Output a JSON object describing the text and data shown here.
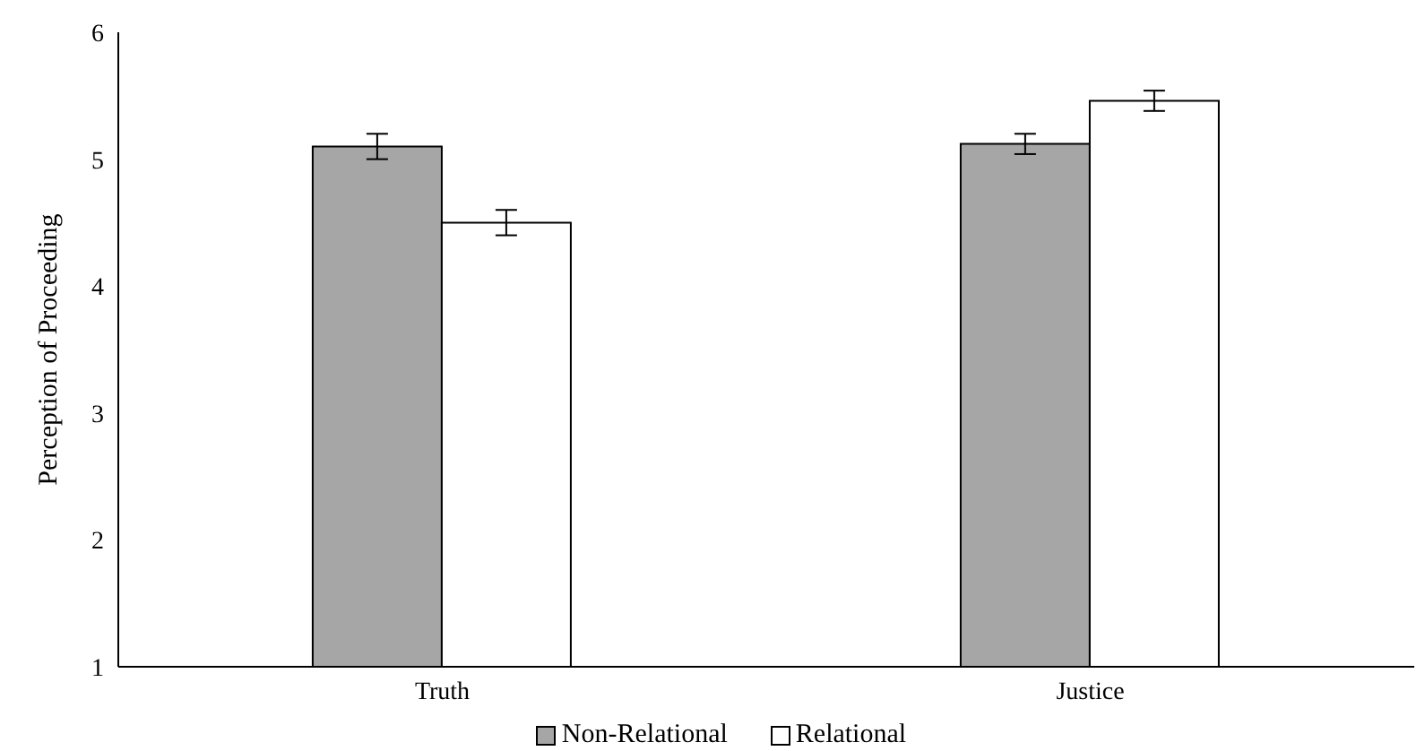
{
  "chart_data": {
    "type": "bar",
    "ylabel": "Perception of Proceeding",
    "categories": [
      "Truth",
      "Justice"
    ],
    "series": [
      {
        "name": "Non-Relational",
        "color": "#a6a6a6",
        "values": [
          5.1,
          5.12
        ],
        "errors": [
          0.1,
          0.08
        ]
      },
      {
        "name": "Relational",
        "color": "#ffffff",
        "values": [
          4.5,
          5.46
        ],
        "errors": [
          0.1,
          0.08
        ]
      }
    ],
    "ylim": [
      1,
      6
    ],
    "yticks": [
      1,
      2,
      3,
      4,
      5,
      6
    ],
    "grid": false,
    "legend": "bottom"
  }
}
